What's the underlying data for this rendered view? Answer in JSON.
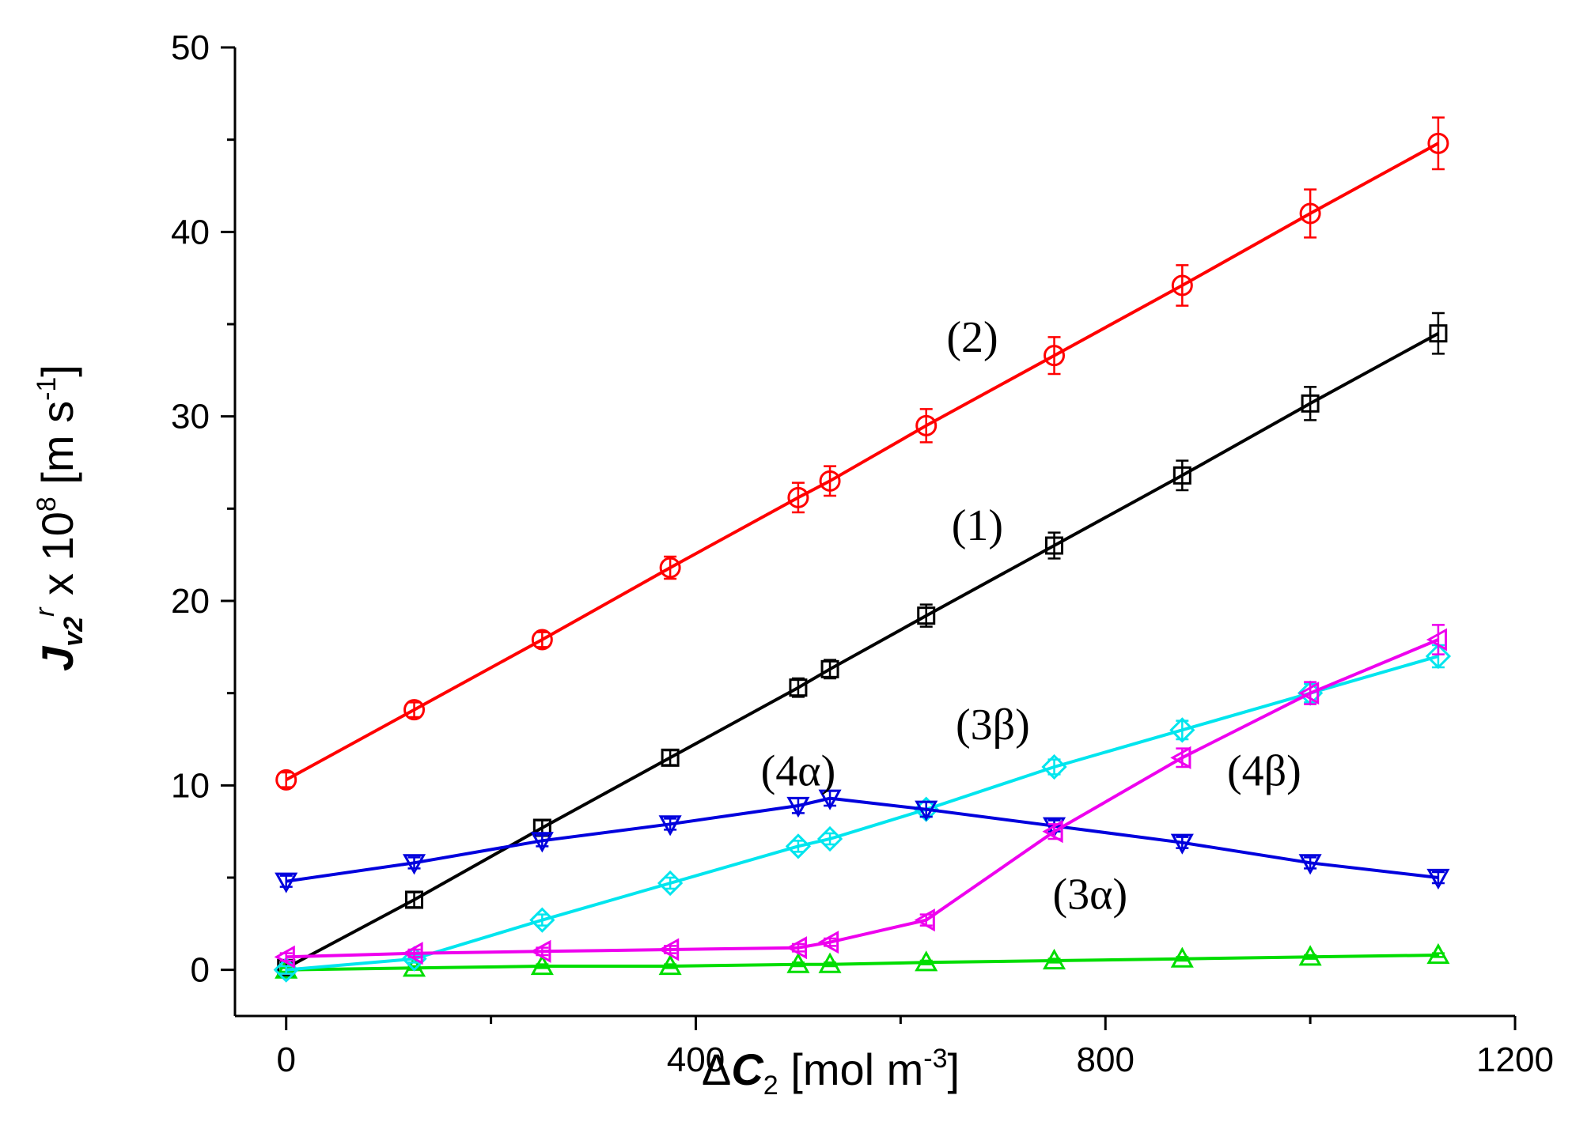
{
  "chart_data": {
    "type": "line",
    "xlabel": {
      "prefix": "Δ",
      "var": "C",
      "sub": "2",
      "units": " [mol m",
      "exp": "-3",
      "close": "]"
    },
    "ylabel": {
      "var": "J",
      "sub": "v2",
      "sup": "r",
      "mid": " x 10",
      "exp": "8",
      "units": " [m s",
      "uexp": "-1",
      "close": "]"
    },
    "xlim": [
      -50,
      1200
    ],
    "ylim": [
      -2.5,
      50
    ],
    "xticks": [
      0,
      400,
      800,
      1200
    ],
    "yticks": [
      0,
      10,
      20,
      30,
      40,
      50
    ],
    "series": [
      {
        "name": "(1)",
        "color": "#000000",
        "marker": "square",
        "x": [
          0,
          125,
          250,
          375,
          500,
          531,
          625,
          750,
          875,
          1000,
          1125
        ],
        "y": [
          0.1,
          3.8,
          7.7,
          11.5,
          15.3,
          16.3,
          19.2,
          23.0,
          26.8,
          30.7,
          34.5
        ],
        "err": [
          0.3,
          0.4,
          0.4,
          0.4,
          0.5,
          0.5,
          0.6,
          0.7,
          0.8,
          0.9,
          1.1
        ]
      },
      {
        "name": "(2)",
        "color": "#ff0000",
        "marker": "circle",
        "x": [
          0,
          125,
          250,
          375,
          500,
          531,
          625,
          750,
          875,
          1000,
          1125
        ],
        "y": [
          10.3,
          14.1,
          17.9,
          21.8,
          25.6,
          26.5,
          29.5,
          33.3,
          37.1,
          41.0,
          44.8
        ],
        "err": [
          0.4,
          0.4,
          0.4,
          0.6,
          0.8,
          0.8,
          0.9,
          1.0,
          1.1,
          1.3,
          1.4
        ]
      },
      {
        "name": "(3α)",
        "color": "#00dd00",
        "marker": "triangle-up",
        "x": [
          0,
          125,
          250,
          375,
          500,
          531,
          625,
          750,
          875,
          1000,
          1125
        ],
        "y": [
          0.0,
          0.1,
          0.2,
          0.2,
          0.3,
          0.3,
          0.4,
          0.5,
          0.6,
          0.7,
          0.8
        ],
        "err": [
          0.1,
          0.1,
          0.1,
          0.1,
          0.1,
          0.1,
          0.1,
          0.1,
          0.1,
          0.1,
          0.1
        ]
      },
      {
        "name": "(3β)",
        "color": "#00e5ee",
        "marker": "diamond",
        "x": [
          0,
          125,
          250,
          375,
          500,
          531,
          625,
          750,
          875,
          1000,
          1125
        ],
        "y": [
          0.0,
          0.6,
          2.7,
          4.7,
          6.7,
          7.1,
          8.7,
          11.0,
          13.0,
          15.0,
          17.0
        ],
        "err": [
          0.2,
          0.2,
          0.3,
          0.3,
          0.3,
          0.3,
          0.4,
          0.4,
          0.5,
          0.5,
          0.6
        ]
      },
      {
        "name": "(4α)",
        "color": "#0000dd",
        "marker": "triangle-down",
        "x": [
          0,
          125,
          250,
          375,
          500,
          531,
          625,
          750,
          875,
          1000,
          1125
        ],
        "y": [
          4.8,
          5.8,
          7.0,
          7.9,
          8.9,
          9.3,
          8.7,
          7.8,
          6.9,
          5.8,
          5.0
        ],
        "err": [
          0.3,
          0.3,
          0.3,
          0.3,
          0.4,
          0.4,
          0.4,
          0.3,
          0.3,
          0.3,
          0.3
        ]
      },
      {
        "name": "(4β)",
        "color": "#ee00ee",
        "marker": "triangle-left",
        "x": [
          0,
          125,
          250,
          375,
          500,
          531,
          625,
          750,
          875,
          1000,
          1125
        ],
        "y": [
          0.7,
          0.9,
          1.0,
          1.1,
          1.2,
          1.5,
          2.7,
          7.5,
          11.5,
          15.0,
          17.9
        ],
        "err": [
          0.2,
          0.2,
          0.2,
          0.2,
          0.2,
          0.2,
          0.3,
          0.4,
          0.5,
          0.6,
          0.8
        ]
      }
    ],
    "annotations": [
      {
        "text": "(2)",
        "x": 670,
        "y": 33.5
      },
      {
        "text": "(1)",
        "x": 675,
        "y": 23.3
      },
      {
        "text": "(3β)",
        "x": 690,
        "y": 12.5
      },
      {
        "text": "(4α)",
        "x": 500,
        "y": 10.0
      },
      {
        "text": "(4β)",
        "x": 955,
        "y": 10.0
      },
      {
        "text": "(3α)",
        "x": 785,
        "y": 3.3
      }
    ]
  }
}
